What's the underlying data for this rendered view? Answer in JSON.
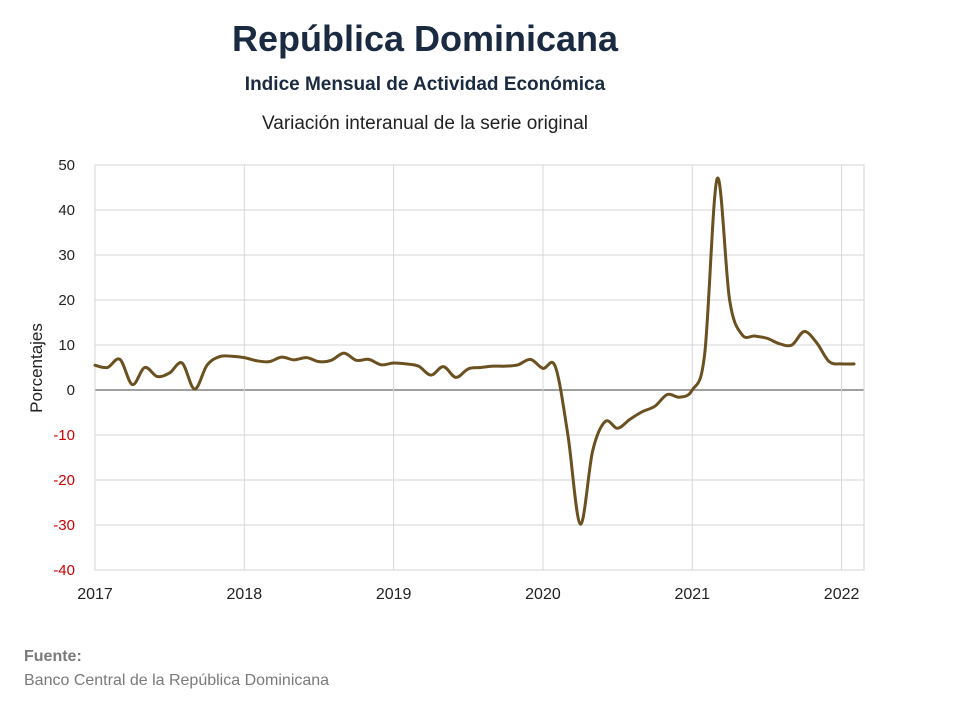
{
  "header": {
    "title": "República Dominicana",
    "subtitle": "Indice Mensual de  Actividad Económica",
    "subtitle2": "Variación interanual de la serie original"
  },
  "footer": {
    "source_label": "Fuente:",
    "source_text": "Banco Central de la República Dominicana"
  },
  "chart_data": {
    "type": "line",
    "title": "República Dominicana",
    "subtitle": "Indice Mensual de  Actividad Económica",
    "xlabel": "",
    "ylabel": "Porcentajes",
    "ylim": [
      -40,
      50
    ],
    "xlim": [
      2017,
      2022.15
    ],
    "yticks": [
      50,
      40,
      30,
      20,
      10,
      0,
      -10,
      -20,
      -30,
      -40
    ],
    "xticks": [
      "2017",
      "2018",
      "2019",
      "2020",
      "2021",
      "2022"
    ],
    "grid": true,
    "negative_tick_color": "#cc0000",
    "line_color": "#6b5020",
    "series": [
      {
        "x": [
          2017.0,
          2017.083,
          2017.167,
          2017.25,
          2017.333,
          2017.417,
          2017.5,
          2017.583,
          2017.667,
          2017.75,
          2017.833,
          2017.917,
          2018.0,
          2018.083,
          2018.167,
          2018.25,
          2018.333,
          2018.417,
          2018.5,
          2018.583,
          2018.667,
          2018.75,
          2018.833,
          2018.917,
          2019.0,
          2019.083,
          2019.167,
          2019.25,
          2019.333,
          2019.417,
          2019.5,
          2019.583,
          2019.667,
          2019.75,
          2019.833,
          2019.917,
          2020.0,
          2020.083,
          2020.167,
          2020.25,
          2020.333,
          2020.417,
          2020.5,
          2020.583,
          2020.667,
          2020.75,
          2020.833,
          2020.917,
          2021.0,
          2021.083,
          2021.167,
          2021.25,
          2021.333,
          2021.417,
          2021.5,
          2021.583,
          2021.667,
          2021.75,
          2021.833,
          2021.917,
          2022.0,
          2022.083
        ],
        "values": [
          5.5,
          5.0,
          6.8,
          1.2,
          5.0,
          3.0,
          3.8,
          6.0,
          0.2,
          5.5,
          7.4,
          7.5,
          7.2,
          6.5,
          6.3,
          7.3,
          6.7,
          7.2,
          6.3,
          6.6,
          8.2,
          6.6,
          6.8,
          5.6,
          6.0,
          5.8,
          5.3,
          3.3,
          5.2,
          2.8,
          4.7,
          5.0,
          5.3,
          5.3,
          5.6,
          6.8,
          4.8,
          5.2,
          -10.0,
          -29.8,
          -13.5,
          -7.0,
          -8.5,
          -6.5,
          -4.8,
          -3.6,
          -1.0,
          -1.6,
          0.0,
          8.0,
          47.0,
          20.0,
          12.3,
          12.0,
          11.5,
          10.3,
          10.0,
          13.0,
          10.5,
          6.3,
          5.8,
          5.8
        ]
      }
    ]
  }
}
